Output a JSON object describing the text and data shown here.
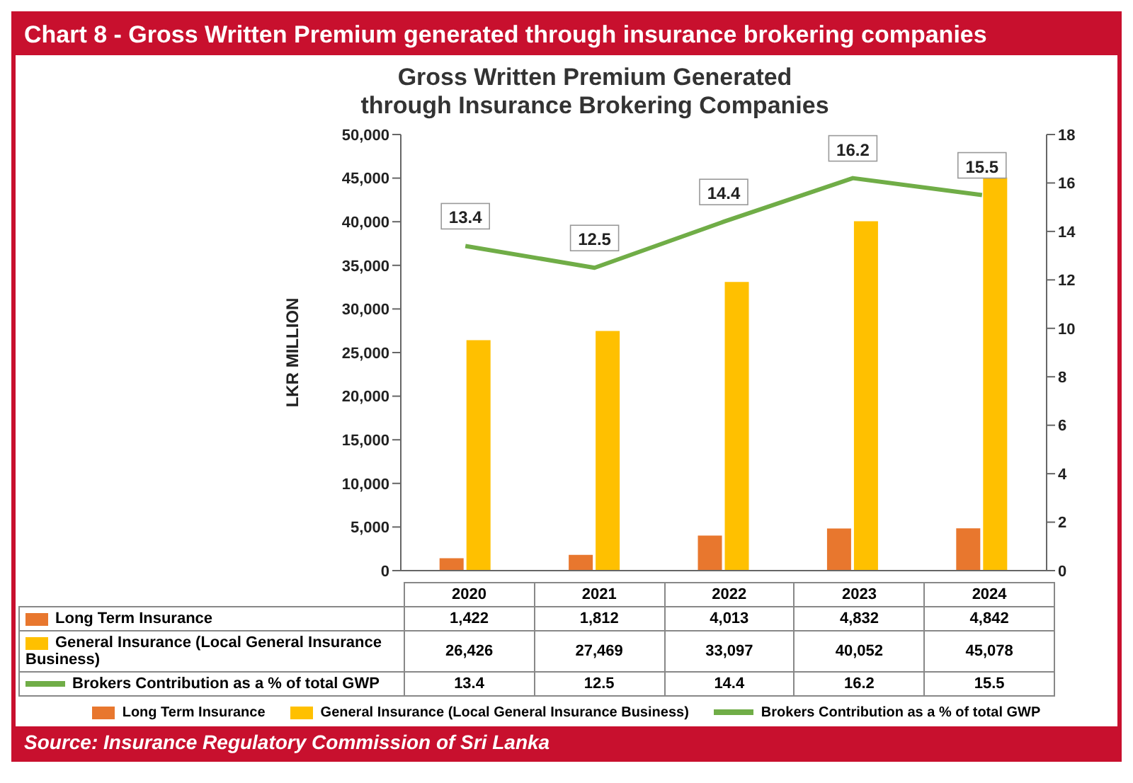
{
  "chart_data": {
    "type": "bar",
    "title": "Chart 8 - Gross Written Premium generated through insurance brokering companies",
    "subtitle": "Gross Written Premium Generated through Insurance Brokering Companies",
    "ylabel": "LKR MILLION",
    "categories": [
      "2020",
      "2021",
      "2022",
      "2023",
      "2024"
    ],
    "series": [
      {
        "name": "Long Term Insurance",
        "color": "#e8772e",
        "values": [
          1422,
          1812,
          4013,
          4832,
          4842
        ],
        "value_labels": [
          "1,422",
          "1,812",
          "4,013",
          "4,832",
          "4,842"
        ]
      },
      {
        "name": "General Insurance (Local General Insurance Business)",
        "color": "#ffc000",
        "values": [
          26426,
          27469,
          33097,
          40052,
          45078
        ],
        "value_labels": [
          "26,426",
          "27,469",
          "33,097",
          "40,052",
          "45,078"
        ]
      },
      {
        "name": "Brokers Contribution as a % of total GWP",
        "type": "line",
        "axis": "y2",
        "color": "#70ad47",
        "values": [
          13.4,
          12.5,
          14.4,
          16.2,
          15.5
        ],
        "value_labels": [
          "13.4",
          "12.5",
          "14.4",
          "16.2",
          "15.5"
        ]
      }
    ],
    "ylim": [
      0,
      50000
    ],
    "yticks": [
      0,
      {
        "value": 5000,
        "label": "5,000"
      },
      {
        "value": 10000,
        "label": "10,000"
      },
      {
        "value": 15000,
        "label": "15,000"
      },
      {
        "value": 20000,
        "label": "20,000"
      },
      {
        "value": 25000,
        "label": "25,000"
      },
      {
        "value": 30000,
        "label": "30,000"
      },
      {
        "value": 35000,
        "label": "35,000"
      },
      {
        "value": 40000,
        "label": "40,000"
      },
      {
        "value": 45000,
        "label": "45,000"
      },
      {
        "value": 50000,
        "label": "50,000"
      }
    ],
    "y2lim": [
      0,
      18
    ],
    "y2ticks": [
      0,
      2,
      4,
      6,
      8,
      10,
      12,
      14,
      16,
      18
    ],
    "legend": "bottom",
    "marker": "none",
    "line_style": "solid",
    "annotations": [
      "Source: Insurance Regulatory Commission of Sri Lanka"
    ]
  }
}
